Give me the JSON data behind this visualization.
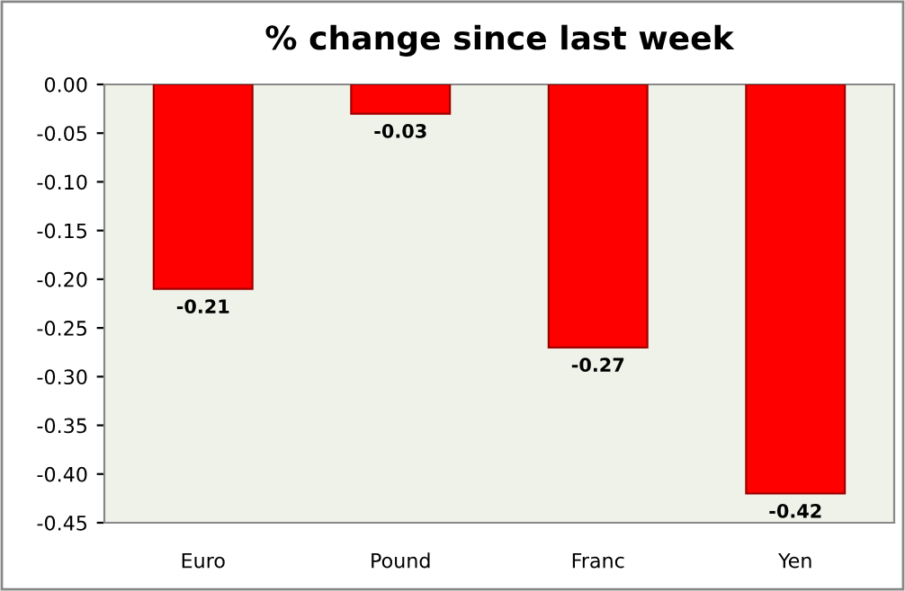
{
  "chart_data": {
    "type": "bar",
    "title": "% change since last week",
    "categories": [
      "Euro",
      "Pound",
      "Franc",
      "Yen"
    ],
    "values": [
      -0.21,
      -0.03,
      -0.27,
      -0.42
    ],
    "color": "#ff0000",
    "value_labels": [
      "-0.21",
      "-0.03",
      "-0.27",
      "-0.42"
    ],
    "ylim": [
      -0.45,
      0
    ],
    "yticks": [
      {
        "value": 0,
        "label": "0.00"
      },
      {
        "value": -0.05,
        "label": "-0.05"
      },
      {
        "value": -0.1,
        "label": "-0.10"
      },
      {
        "value": -0.15,
        "label": "-0.15"
      },
      {
        "value": -0.2,
        "label": "-0.20"
      },
      {
        "value": -0.25,
        "label": "-0.25"
      },
      {
        "value": -0.3,
        "label": "-0.30"
      },
      {
        "value": -0.35,
        "label": "-0.35"
      },
      {
        "value": -0.4,
        "label": "-0.40"
      },
      {
        "value": -0.45,
        "label": "-0.45"
      }
    ],
    "grid": false
  }
}
